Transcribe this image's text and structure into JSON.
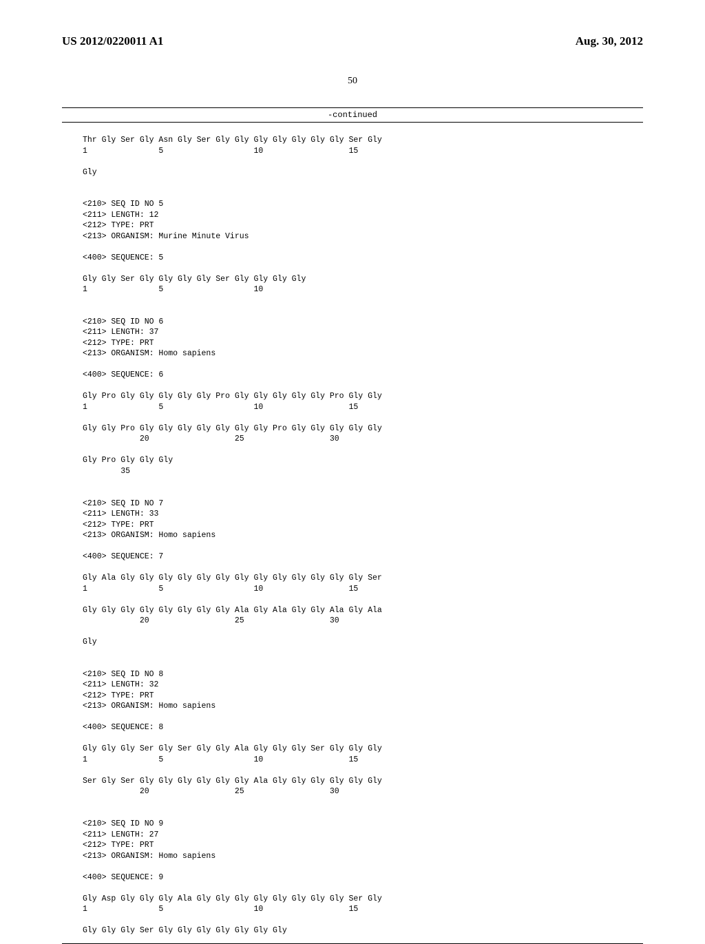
{
  "header": {
    "pub_number": "US 2012/0220011 A1",
    "pub_date": "Aug. 30, 2012"
  },
  "page_number": "50",
  "continued_label": "-continued",
  "seq_lines": [
    "Thr Gly Ser Gly Asn Gly Ser Gly Gly Gly Gly Gly Gly Gly Ser Gly",
    "1               5                   10                  15",
    "",
    "Gly",
    "",
    "",
    "<210> SEQ ID NO 5",
    "<211> LENGTH: 12",
    "<212> TYPE: PRT",
    "<213> ORGANISM: Murine Minute Virus",
    "",
    "<400> SEQUENCE: 5",
    "",
    "Gly Gly Ser Gly Gly Gly Gly Ser Gly Gly Gly Gly",
    "1               5                   10",
    "",
    "",
    "<210> SEQ ID NO 6",
    "<211> LENGTH: 37",
    "<212> TYPE: PRT",
    "<213> ORGANISM: Homo sapiens",
    "",
    "<400> SEQUENCE: 6",
    "",
    "Gly Pro Gly Gly Gly Gly Gly Pro Gly Gly Gly Gly Gly Pro Gly Gly",
    "1               5                   10                  15",
    "",
    "Gly Gly Pro Gly Gly Gly Gly Gly Gly Gly Pro Gly Gly Gly Gly Gly",
    "            20                  25                  30",
    "",
    "Gly Pro Gly Gly Gly",
    "        35",
    "",
    "",
    "<210> SEQ ID NO 7",
    "<211> LENGTH: 33",
    "<212> TYPE: PRT",
    "<213> ORGANISM: Homo sapiens",
    "",
    "<400> SEQUENCE: 7",
    "",
    "Gly Ala Gly Gly Gly Gly Gly Gly Gly Gly Gly Gly Gly Gly Gly Ser",
    "1               5                   10                  15",
    "",
    "Gly Gly Gly Gly Gly Gly Gly Gly Ala Gly Ala Gly Gly Ala Gly Ala",
    "            20                  25                  30",
    "",
    "Gly",
    "",
    "",
    "<210> SEQ ID NO 8",
    "<211> LENGTH: 32",
    "<212> TYPE: PRT",
    "<213> ORGANISM: Homo sapiens",
    "",
    "<400> SEQUENCE: 8",
    "",
    "Gly Gly Gly Ser Gly Ser Gly Gly Ala Gly Gly Gly Ser Gly Gly Gly",
    "1               5                   10                  15",
    "",
    "Ser Gly Ser Gly Gly Gly Gly Gly Gly Ala Gly Gly Gly Gly Gly Gly",
    "            20                  25                  30",
    "",
    "",
    "<210> SEQ ID NO 9",
    "<211> LENGTH: 27",
    "<212> TYPE: PRT",
    "<213> ORGANISM: Homo sapiens",
    "",
    "<400> SEQUENCE: 9",
    "",
    "Gly Asp Gly Gly Gly Ala Gly Gly Gly Gly Gly Gly Gly Gly Ser Gly",
    "1               5                   10                  15",
    "",
    "Gly Gly Gly Ser Gly Gly Gly Gly Gly Gly Gly"
  ]
}
